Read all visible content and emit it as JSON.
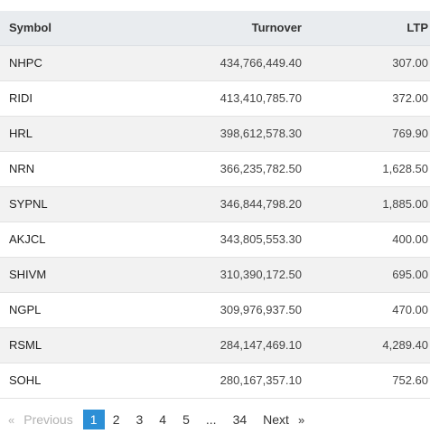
{
  "table": {
    "headers": {
      "symbol": "Symbol",
      "turnover": "Turnover",
      "ltp": "LTP"
    },
    "rows": [
      {
        "symbol": "NHPC",
        "turnover": "434,766,449.40",
        "ltp": "307.00"
      },
      {
        "symbol": "RIDI",
        "turnover": "413,410,785.70",
        "ltp": "372.00"
      },
      {
        "symbol": "HRL",
        "turnover": "398,612,578.30",
        "ltp": "769.90"
      },
      {
        "symbol": "NRN",
        "turnover": "366,235,782.50",
        "ltp": "1,628.50"
      },
      {
        "symbol": "SYPNL",
        "turnover": "346,844,798.20",
        "ltp": "1,885.00"
      },
      {
        "symbol": "AKJCL",
        "turnover": "343,805,553.30",
        "ltp": "400.00"
      },
      {
        "symbol": "SHIVM",
        "turnover": "310,390,172.50",
        "ltp": "695.00"
      },
      {
        "symbol": "NGPL",
        "turnover": "309,976,937.50",
        "ltp": "470.00"
      },
      {
        "symbol": "RSML",
        "turnover": "284,147,469.10",
        "ltp": "4,289.40"
      },
      {
        "symbol": "SOHL",
        "turnover": "280,167,357.10",
        "ltp": "752.60"
      }
    ]
  },
  "pagination": {
    "prev_arrow": "«",
    "prev_label": "Previous",
    "pages": [
      "1",
      "2",
      "3",
      "4",
      "5"
    ],
    "ellipsis": "...",
    "last_page": "34",
    "next_label": "Next",
    "next_arrow": "»",
    "active_page": "1",
    "active_color": "#2c8fd6"
  }
}
